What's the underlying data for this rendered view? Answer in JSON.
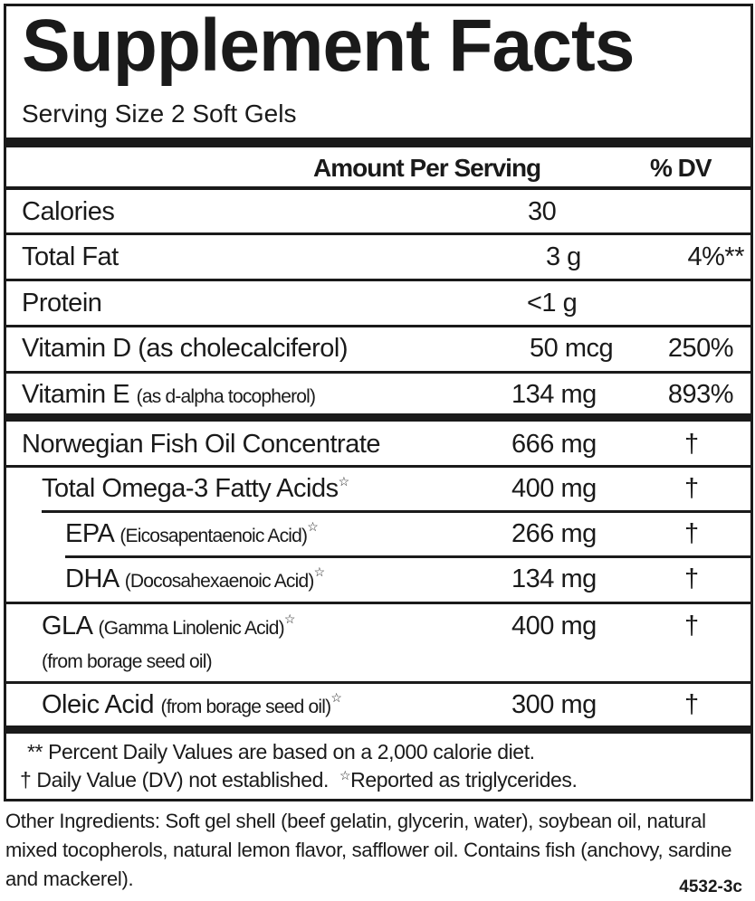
{
  "title": "Supplement Facts",
  "serving_size": "Serving Size 2 Soft Gels",
  "header": {
    "amount": "Amount Per Serving",
    "dv": "% DV"
  },
  "rows": [
    {
      "name": "Calories",
      "amount": "30",
      "dv": ""
    },
    {
      "name": "Total Fat",
      "amount": "3 g",
      "dv": "4%**"
    },
    {
      "name": "Protein",
      "amount": "<1 g",
      "dv": ""
    },
    {
      "name": "Vitamin D (as cholecalciferol)",
      "amount": "50 mcg",
      "dv": "250%"
    },
    {
      "name": "Vitamin E",
      "detail": "(as d-alpha tocopherol)",
      "amount": "134 mg",
      "dv": "893%"
    }
  ],
  "oils": [
    {
      "name": "Norwegian Fish Oil Concentrate",
      "amount": "666 mg",
      "dv": "†"
    },
    {
      "name": "Total Omega-3 Fatty Acids",
      "star": "☆",
      "amount": "400 mg",
      "dv": "†"
    },
    {
      "name": "EPA",
      "detail": "(Eicosapentaenoic Acid)",
      "star": "☆",
      "amount": "266 mg",
      "dv": "†"
    },
    {
      "name": "DHA",
      "detail": "(Docosahexaenoic Acid)",
      "star": "☆",
      "amount": "134 mg",
      "dv": "†"
    },
    {
      "name": "GLA",
      "detail": "(Gamma Linolenic Acid)",
      "star": "☆",
      "detail2": "(from borage seed oil)",
      "amount": "400 mg",
      "dv": "†"
    },
    {
      "name": "Oleic Acid",
      "detail": "(from borage seed oil)",
      "star": "☆",
      "amount": "300 mg",
      "dv": "†"
    }
  ],
  "footnotes": {
    "line1": "** Percent Daily Values are based on a 2,000 calorie diet.",
    "line2a": "† Daily Value (DV) not established.",
    "star": "☆",
    "line2b": "Reported as triglycerides."
  },
  "other_ingredients": "Other Ingredients: Soft gel shell (beef gelatin, glycerin, water), soybean oil, natural mixed tocopherols, natural lemon flavor, safflower oil. Contains fish (anchovy, sardine and mackerel).",
  "code": "4532-3c"
}
